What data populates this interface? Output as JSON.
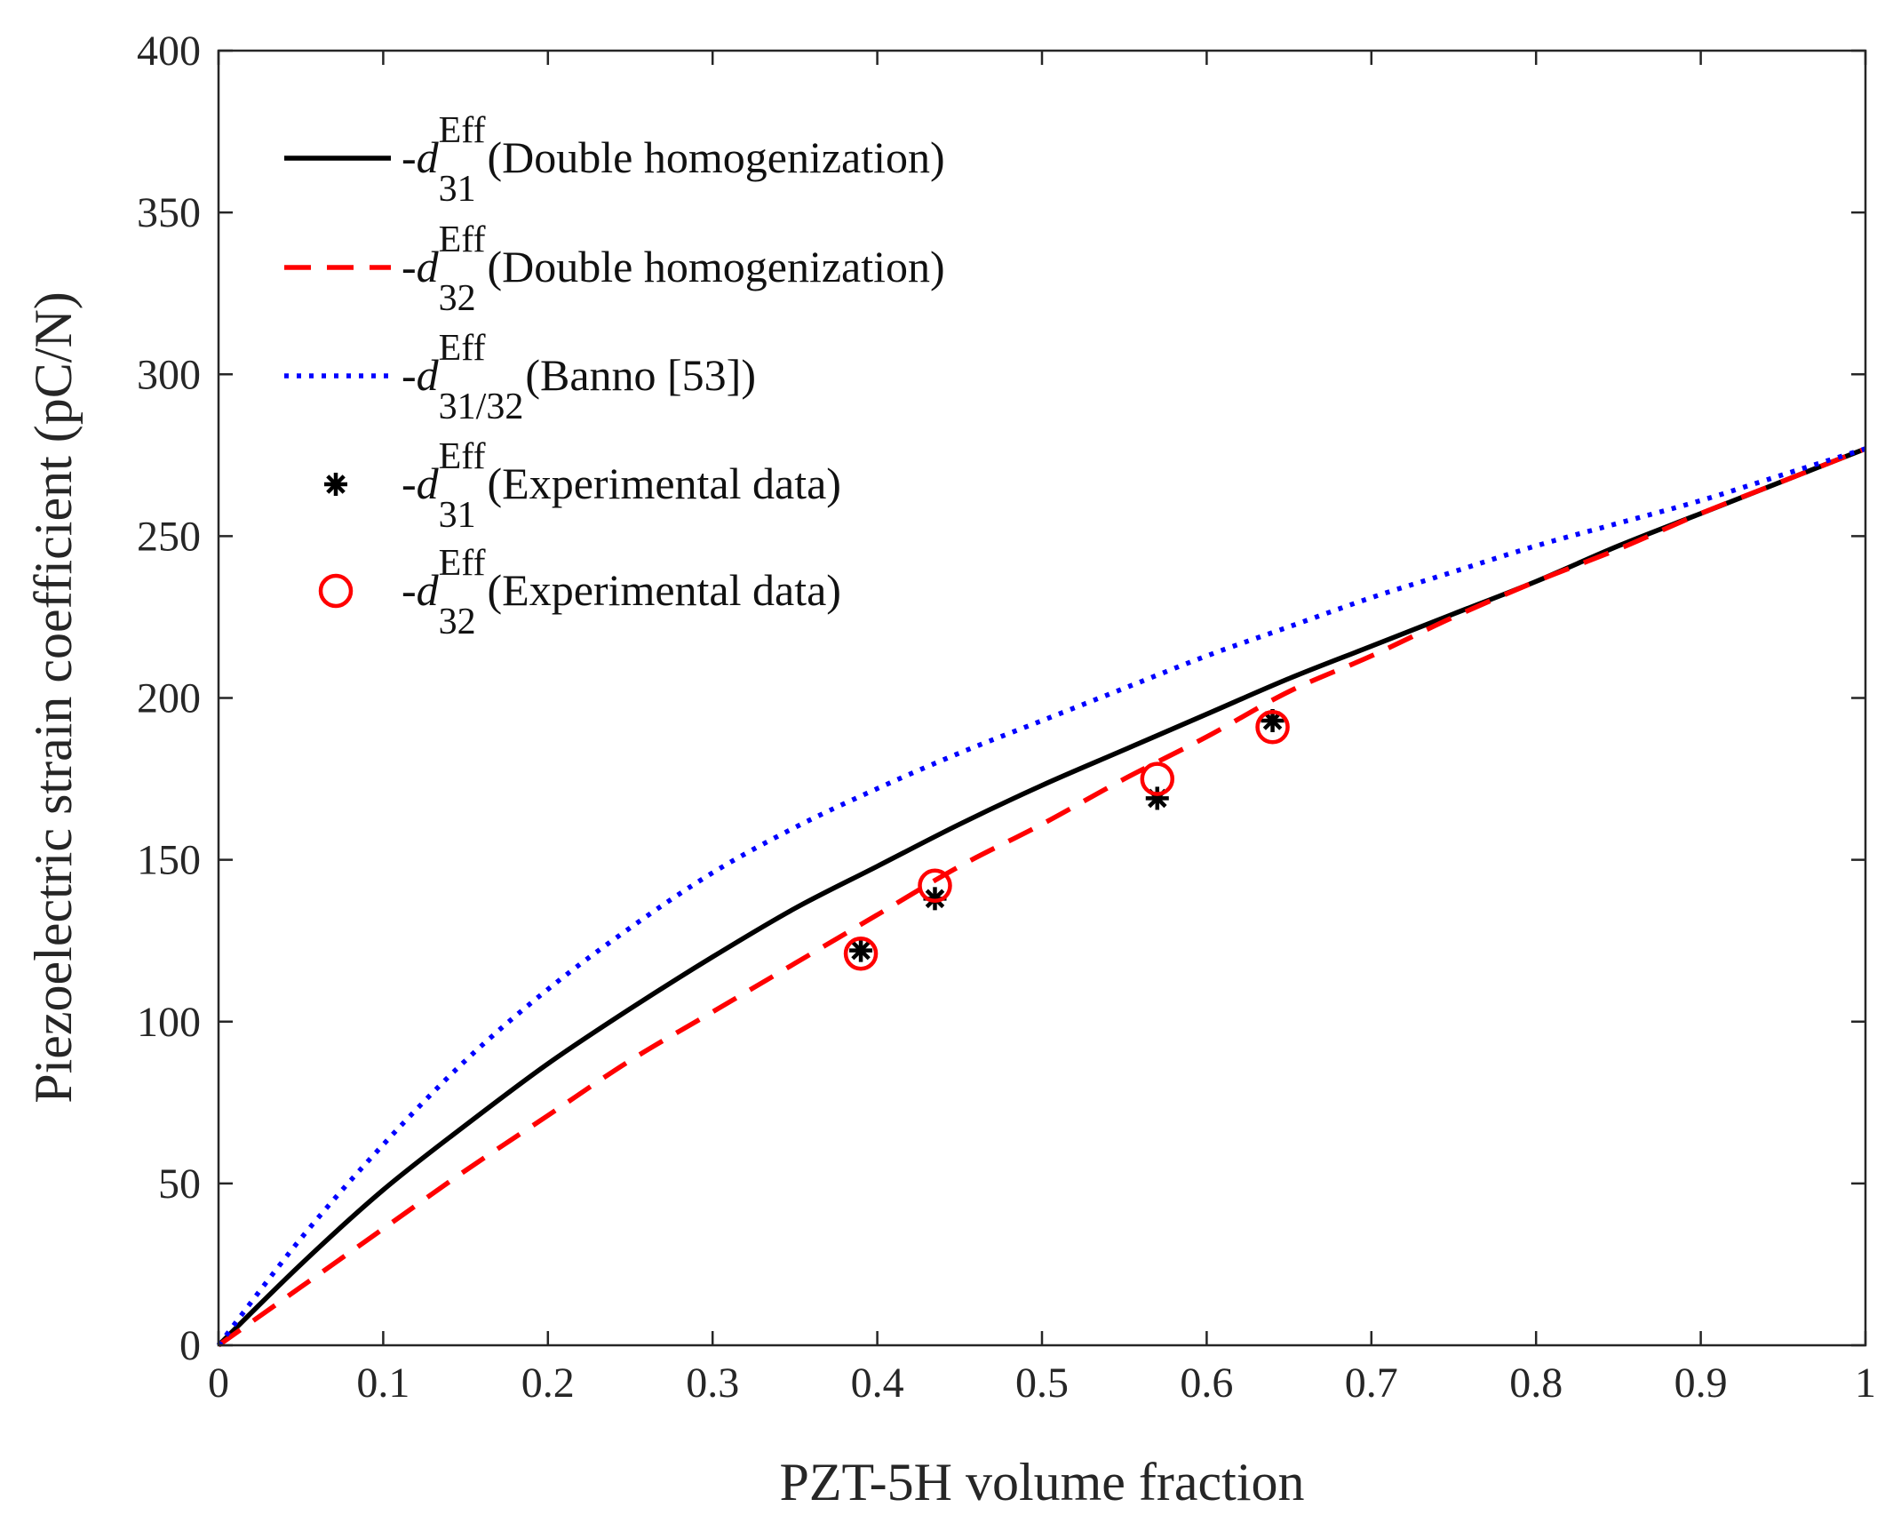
{
  "chart_data": {
    "type": "line",
    "title": "",
    "xlabel": "PZT-5H volume fraction",
    "ylabel": "Piezoelectric strain coefficient (pC/N)",
    "xlim": [
      0,
      1
    ],
    "ylim": [
      0,
      400
    ],
    "grid": false,
    "legend_position": "top-left",
    "xticks": [
      "0",
      "0.1",
      "0.2",
      "0.3",
      "0.4",
      "0.5",
      "0.6",
      "0.7",
      "0.8",
      "0.9",
      "1"
    ],
    "xtick_values": [
      0,
      0.1,
      0.2,
      0.3,
      0.4,
      0.5,
      0.6,
      0.7,
      0.8,
      0.9,
      1
    ],
    "yticks": [
      "0",
      "50",
      "100",
      "150",
      "200",
      "250",
      "300",
      "350",
      "400"
    ],
    "ytick_values": [
      0,
      50,
      100,
      150,
      200,
      250,
      300,
      350,
      400
    ],
    "series": [
      {
        "name": "d31 double homogenization",
        "legend": {
          "prefix": "-",
          "symbol": "d",
          "sup": "Eff",
          "sub": "31",
          "suffix": "(Double homogenization)"
        },
        "color": "#000000",
        "style": "solid",
        "marker": "none",
        "x": [
          0,
          0.05,
          0.1,
          0.15,
          0.2,
          0.25,
          0.3,
          0.35,
          0.4,
          0.45,
          0.5,
          0.55,
          0.6,
          0.65,
          0.7,
          0.75,
          0.8,
          0.85,
          0.9,
          0.95,
          1.0
        ],
        "y": [
          0,
          25,
          48,
          68,
          87,
          104,
          120,
          135,
          148,
          161,
          173,
          184,
          195,
          206,
          216,
          226,
          236,
          247,
          257,
          267,
          277
        ]
      },
      {
        "name": "d32 double homogenization",
        "legend": {
          "prefix": "-",
          "symbol": "d",
          "sup": "Eff",
          "sub": "32",
          "suffix": "(Double homogenization)"
        },
        "color": "#ff0000",
        "style": "dashed",
        "marker": "none",
        "x": [
          0,
          0.05,
          0.1,
          0.15,
          0.2,
          0.25,
          0.3,
          0.35,
          0.4,
          0.45,
          0.5,
          0.55,
          0.6,
          0.65,
          0.7,
          0.75,
          0.8,
          0.85,
          0.9,
          0.95,
          1.0
        ],
        "y": [
          0,
          18,
          36,
          54,
          71,
          88,
          103,
          118,
          133,
          148,
          161,
          175,
          188,
          202,
          213,
          225,
          236,
          246,
          257,
          267,
          277
        ]
      },
      {
        "name": "d31/32 Banno",
        "legend": {
          "prefix": "-",
          "symbol": "d",
          "sup": "Eff",
          "sub": "31/32",
          "suffix": "(Banno [53])"
        },
        "color": "#0000ff",
        "style": "dotted",
        "marker": "none",
        "x": [
          0,
          0.05,
          0.1,
          0.15,
          0.2,
          0.25,
          0.3,
          0.35,
          0.4,
          0.45,
          0.5,
          0.55,
          0.6,
          0.65,
          0.7,
          0.75,
          0.8,
          0.85,
          0.9,
          0.95,
          1.0
        ],
        "y": [
          0,
          33,
          62,
          88,
          110,
          129,
          146,
          160,
          172,
          183,
          193,
          203,
          213,
          222,
          231,
          239,
          247,
          254,
          261,
          269,
          277
        ]
      },
      {
        "name": "d31 experimental",
        "legend": {
          "prefix": "-",
          "symbol": "d",
          "sup": "Eff",
          "sub": "31",
          "suffix": "(Experimental data)"
        },
        "color": "#000000",
        "style": "none",
        "marker": "asterisk",
        "x": [
          0.39,
          0.435,
          0.57,
          0.64
        ],
        "y": [
          122,
          138,
          169,
          193
        ]
      },
      {
        "name": "d32 experimental",
        "legend": {
          "prefix": "-",
          "symbol": "d",
          "sup": "Eff",
          "sub": "32",
          "suffix": "(Experimental data)"
        },
        "color": "#ff0000",
        "style": "none",
        "marker": "circle",
        "x": [
          0.39,
          0.435,
          0.57,
          0.64
        ],
        "y": [
          121,
          142,
          175,
          191
        ]
      }
    ]
  }
}
